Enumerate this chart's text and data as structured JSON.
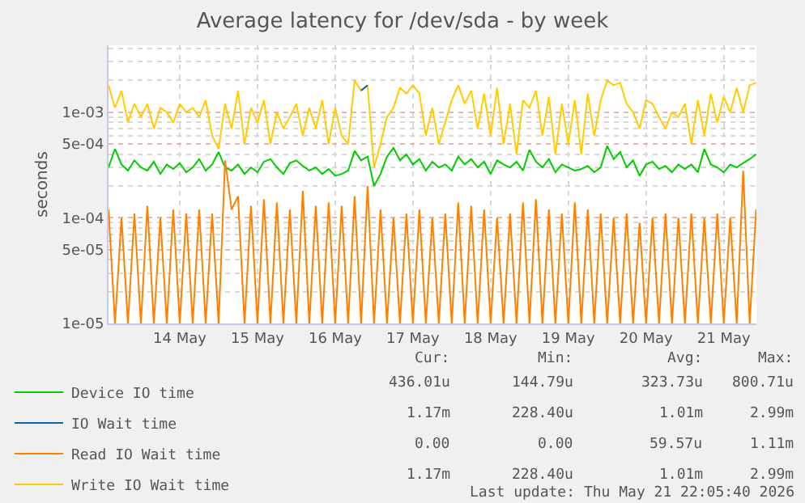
{
  "chart_data": {
    "type": "line",
    "title": "Average latency for /dev/sda - by week",
    "ylabel": "seconds",
    "x": [
      "2026-05-13T14:00",
      "2026-05-13T16:00",
      "2026-05-13T18:00",
      "2026-05-13T20:00",
      "2026-05-13T22:00",
      "2026-05-14T00:00",
      "2026-05-14T02:00",
      "2026-05-14T04:00",
      "2026-05-14T06:00",
      "2026-05-14T08:00",
      "2026-05-14T10:00",
      "2026-05-14T12:00",
      "2026-05-14T14:00",
      "2026-05-14T16:00",
      "2026-05-14T18:00",
      "2026-05-14T20:00",
      "2026-05-14T22:00",
      "2026-05-15T00:00",
      "2026-05-15T02:00",
      "2026-05-15T04:00",
      "2026-05-15T06:00",
      "2026-05-15T08:00",
      "2026-05-15T10:00",
      "2026-05-15T12:00",
      "2026-05-15T14:00",
      "2026-05-15T16:00",
      "2026-05-15T18:00",
      "2026-05-15T20:00",
      "2026-05-15T22:00",
      "2026-05-16T00:00",
      "2026-05-16T02:00",
      "2026-05-16T04:00",
      "2026-05-16T06:00",
      "2026-05-16T08:00",
      "2026-05-16T10:00",
      "2026-05-16T12:00",
      "2026-05-16T14:00",
      "2026-05-16T16:00",
      "2026-05-16T18:00",
      "2026-05-16T20:00",
      "2026-05-16T22:00",
      "2026-05-17T00:00",
      "2026-05-17T02:00",
      "2026-05-17T04:00",
      "2026-05-17T06:00",
      "2026-05-17T08:00",
      "2026-05-17T10:00",
      "2026-05-17T12:00",
      "2026-05-17T14:00",
      "2026-05-17T16:00",
      "2026-05-17T18:00",
      "2026-05-17T20:00",
      "2026-05-17T22:00",
      "2026-05-18T00:00",
      "2026-05-18T02:00",
      "2026-05-18T04:00",
      "2026-05-18T06:00",
      "2026-05-18T08:00",
      "2026-05-18T10:00",
      "2026-05-18T12:00",
      "2026-05-18T14:00",
      "2026-05-18T16:00",
      "2026-05-18T18:00",
      "2026-05-18T20:00",
      "2026-05-18T22:00",
      "2026-05-19T00:00",
      "2026-05-19T02:00",
      "2026-05-19T04:00",
      "2026-05-19T06:00",
      "2026-05-19T08:00",
      "2026-05-19T10:00",
      "2026-05-19T12:00",
      "2026-05-19T14:00",
      "2026-05-19T16:00",
      "2026-05-19T18:00",
      "2026-05-19T20:00",
      "2026-05-19T22:00",
      "2026-05-20T00:00",
      "2026-05-20T02:00",
      "2026-05-20T04:00",
      "2026-05-20T06:00",
      "2026-05-20T08:00",
      "2026-05-20T10:00",
      "2026-05-20T12:00",
      "2026-05-20T14:00",
      "2026-05-20T16:00",
      "2026-05-20T18:00",
      "2026-05-20T20:00",
      "2026-05-20T22:00",
      "2026-05-21T00:00",
      "2026-05-21T02:00",
      "2026-05-21T04:00",
      "2026-05-21T06:00",
      "2026-05-21T08:00",
      "2026-05-21T10:00",
      "2026-05-21T12:00",
      "2026-05-21T14:00",
      "2026-05-21T16:00",
      "2026-05-21T18:00",
      "2026-05-21T20:00",
      "2026-05-21T22:00"
    ],
    "series": [
      {
        "name": "Device IO time",
        "color": "#00cc00",
        "values": [
          0.0003,
          0.00045,
          0.00032,
          0.00028,
          0.00035,
          0.0003,
          0.00028,
          0.00034,
          0.00026,
          0.00032,
          0.00029,
          0.00033,
          0.00027,
          0.0003,
          0.00036,
          0.00028,
          0.00032,
          0.00042,
          0.0003,
          0.00028,
          0.00032,
          0.00026,
          0.0003,
          0.00027,
          0.00034,
          0.00036,
          0.0003,
          0.00026,
          0.00033,
          0.00035,
          0.00031,
          0.00028,
          0.0003,
          0.00026,
          0.00029,
          0.00025,
          0.00026,
          0.00028,
          0.00043,
          0.00035,
          0.00038,
          0.0002,
          0.00026,
          0.00038,
          0.00046,
          0.00035,
          0.0004,
          0.00032,
          0.00036,
          0.00028,
          0.00034,
          0.0003,
          0.00032,
          0.00028,
          0.00038,
          0.00032,
          0.00036,
          0.0003,
          0.00034,
          0.00026,
          0.00035,
          0.00032,
          0.0003,
          0.00034,
          0.00028,
          0.00044,
          0.00034,
          0.0003,
          0.00036,
          0.00027,
          0.00032,
          0.0003,
          0.00028,
          0.00029,
          0.00031,
          0.00027,
          0.0003,
          0.00048,
          0.00036,
          0.00042,
          0.0003,
          0.00035,
          0.00025,
          0.00032,
          0.00034,
          0.00029,
          0.00031,
          0.00027,
          0.00032,
          0.00029,
          0.00032,
          0.00027,
          0.00045,
          0.00032,
          0.0003,
          0.00027,
          0.00032,
          0.0003,
          0.00033,
          0.00036,
          0.0004
        ]
      },
      {
        "name": "IO Wait time",
        "color": "#0066b3",
        "values": [
          null,
          null,
          null,
          null,
          null,
          null,
          null,
          null,
          null,
          null,
          null,
          null,
          null,
          null,
          null,
          null,
          null,
          null,
          null,
          null,
          null,
          null,
          null,
          null,
          null,
          null,
          null,
          null,
          null,
          null,
          null,
          null,
          null,
          null,
          null,
          null,
          null,
          null,
          null,
          0.0016,
          0.0018,
          null,
          null,
          null,
          null,
          null,
          null,
          null,
          null,
          null,
          null,
          null,
          null,
          null,
          null,
          null,
          null,
          null,
          null,
          null,
          null,
          null,
          null,
          null,
          null,
          null,
          null,
          null,
          null,
          null,
          null,
          null,
          null,
          null,
          null,
          null,
          null,
          null,
          null,
          null,
          null,
          null,
          null,
          null,
          null,
          null,
          null,
          null,
          null,
          null,
          null,
          null,
          null,
          null,
          null,
          null,
          null,
          null,
          null,
          null,
          null
        ]
      },
      {
        "name": "Read IO Wait time",
        "color": "#ff8000",
        "values": [
          0.00012,
          1e-05,
          0.0001,
          1e-05,
          0.00011,
          1e-05,
          0.00013,
          1e-05,
          0.0001,
          1e-05,
          0.00012,
          1e-05,
          0.00011,
          1e-05,
          0.00012,
          1e-05,
          0.00011,
          1e-05,
          0.00035,
          0.00012,
          0.00016,
          1e-05,
          0.00013,
          1e-05,
          0.00015,
          1e-05,
          0.00014,
          1e-05,
          0.00012,
          1e-05,
          0.00018,
          1e-05,
          0.00013,
          1e-05,
          0.00014,
          1e-05,
          0.00013,
          1e-05,
          0.00016,
          1e-05,
          0.0002,
          1e-05,
          0.00012,
          1e-05,
          0.0001,
          1e-05,
          0.00011,
          1e-05,
          0.00012,
          1e-05,
          0.0001,
          1e-05,
          0.00011,
          1e-05,
          0.00014,
          1e-05,
          0.00013,
          1e-05,
          0.00012,
          1e-05,
          0.0001,
          1e-05,
          0.00011,
          1e-05,
          0.00014,
          1e-05,
          0.00015,
          1e-05,
          0.00012,
          1e-05,
          0.00011,
          1e-05,
          0.00014,
          1e-05,
          0.00012,
          1e-05,
          0.00011,
          1e-05,
          0.0001,
          1e-05,
          0.00011,
          1e-05,
          9e-05,
          1e-05,
          0.0001,
          1e-05,
          0.00011,
          1e-05,
          0.0001,
          1e-05,
          0.00011,
          1e-05,
          0.0001,
          1e-05,
          0.00011,
          1e-05,
          0.0001,
          1e-05,
          0.00028,
          1e-05,
          0.00012
        ]
      },
      {
        "name": "Write IO Wait time",
        "color": "#ffcc00",
        "values": [
          0.0018,
          0.0011,
          0.0016,
          0.0008,
          0.0012,
          0.0009,
          0.0012,
          0.0007,
          0.0011,
          0.001,
          0.0008,
          0.0012,
          0.001,
          0.0011,
          0.0009,
          0.0013,
          0.0006,
          0.00045,
          0.0012,
          0.0007,
          0.0016,
          0.0005,
          0.0011,
          0.0008,
          0.0013,
          0.0005,
          0.001,
          0.0007,
          0.0009,
          0.0012,
          0.0006,
          0.0011,
          0.0007,
          0.0013,
          0.0005,
          0.0011,
          0.0006,
          0.0005,
          0.002,
          0.0016,
          0.0018,
          0.0003,
          0.0005,
          0.0009,
          0.0011,
          0.0017,
          0.0015,
          0.0018,
          0.0015,
          0.0006,
          0.0011,
          0.0005,
          0.0008,
          0.0013,
          0.0018,
          0.0012,
          0.0016,
          0.0007,
          0.0015,
          0.0006,
          0.0017,
          0.0005,
          0.0012,
          0.0004,
          0.0013,
          0.0011,
          0.0016,
          0.0006,
          0.0014,
          0.0004,
          0.0012,
          0.0005,
          0.0013,
          0.0004,
          0.0015,
          0.0006,
          0.0013,
          0.002,
          0.0018,
          0.0019,
          0.0012,
          0.001,
          0.0007,
          0.0013,
          0.0012,
          0.0009,
          0.0007,
          0.001,
          0.0009,
          0.0012,
          0.0005,
          0.0013,
          0.0006,
          0.0015,
          0.0008,
          0.0014,
          0.001,
          0.0017,
          0.001,
          0.0018,
          0.0019
        ]
      }
    ],
    "xlim": [
      "2026-05-13T14:00",
      "2026-05-21T22:05"
    ],
    "xticks": [
      {
        "value": "2026-05-14T12:00",
        "label": "14 May"
      },
      {
        "value": "2026-05-15T12:00",
        "label": "15 May"
      },
      {
        "value": "2026-05-16T12:00",
        "label": "16 May"
      },
      {
        "value": "2026-05-17T12:00",
        "label": "17 May"
      },
      {
        "value": "2026-05-18T12:00",
        "label": "18 May"
      },
      {
        "value": "2026-05-19T12:00",
        "label": "19 May"
      },
      {
        "value": "2026-05-20T12:00",
        "label": "20 May"
      },
      {
        "value": "2026-05-21T12:00",
        "label": "21 May"
      }
    ],
    "ylim": [
      1e-05,
      0.0043
    ],
    "yticks": [
      {
        "value": 1e-05,
        "label": "1e-05"
      },
      {
        "value": 5e-05,
        "label": "5e-05"
      },
      {
        "value": 0.0001,
        "label": "1e-04"
      },
      {
        "value": 0.0005,
        "label": "5e-04"
      },
      {
        "value": 0.001,
        "label": "1e-03"
      }
    ],
    "log": "y",
    "grid": true,
    "legend": "bottom left",
    "annotations": [
      "Cur:",
      "Min:",
      "Avg:",
      "Max:",
      "436.01u",
      "144.79u",
      "323.73u",
      "800.71u",
      "1.17m",
      "228.40u",
      "1.01m",
      "2.99m",
      "0.00",
      "0.00",
      "59.57u",
      "1.11m",
      "1.17m",
      "228.40u",
      "1.01m",
      "2.99m",
      "Last update: Thu May 21 22:05:40 2026"
    ]
  }
}
